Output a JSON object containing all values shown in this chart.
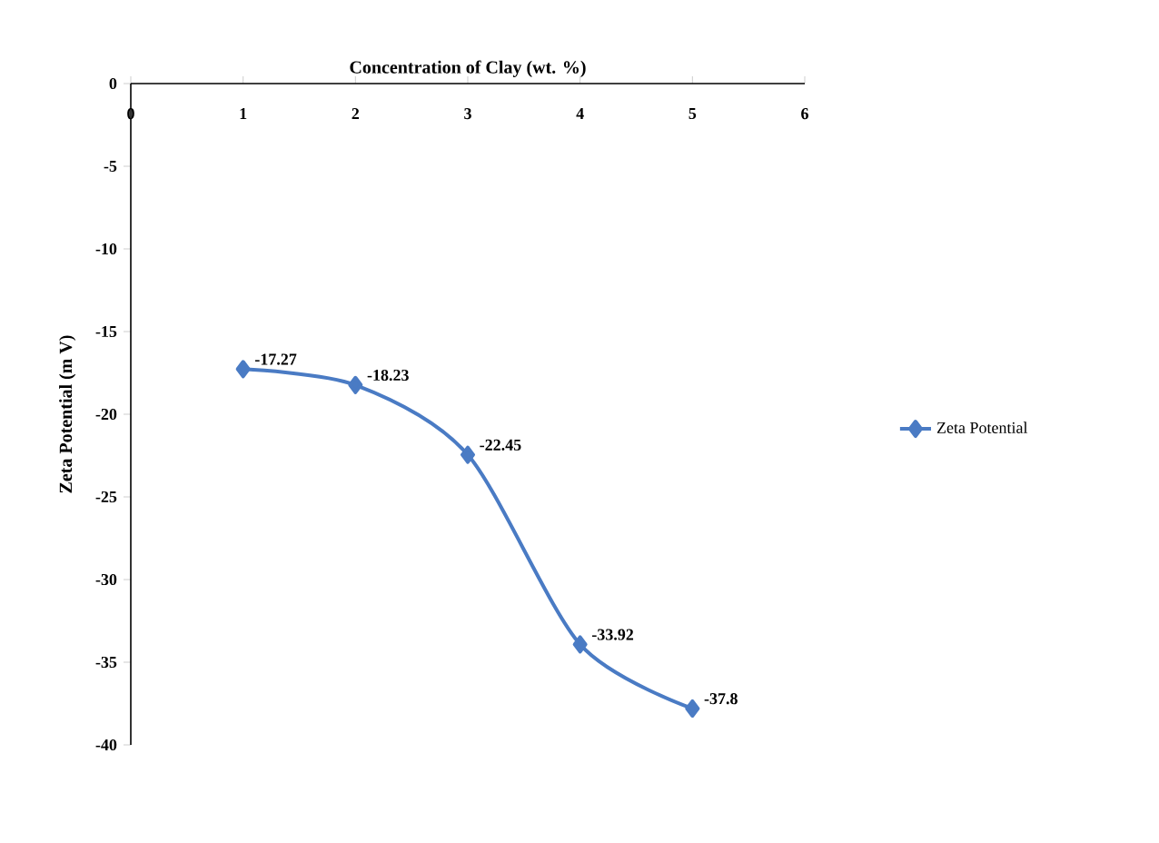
{
  "chart_data": {
    "type": "line",
    "xlabel": "Concentration of Clay (wt. %)",
    "ylabel": "Zeta Potential (m V)",
    "x": [
      1,
      2,
      3,
      4,
      5
    ],
    "series": [
      {
        "name": "Zeta Potential",
        "color": "#4a7bc4",
        "values": [
          -17.27,
          -18.23,
          -22.45,
          -33.92,
          -37.8
        ]
      }
    ],
    "xlim": [
      0,
      6
    ],
    "xticks": [
      0,
      1,
      2,
      3,
      4,
      5,
      6
    ],
    "ylim": [
      -40,
      0
    ],
    "yticks": [
      -40,
      -35,
      -30,
      -25,
      -20,
      -15,
      -10,
      -5,
      0
    ],
    "marker": "diamond",
    "line_style": "solid",
    "legend": "right",
    "data_labels": true
  }
}
